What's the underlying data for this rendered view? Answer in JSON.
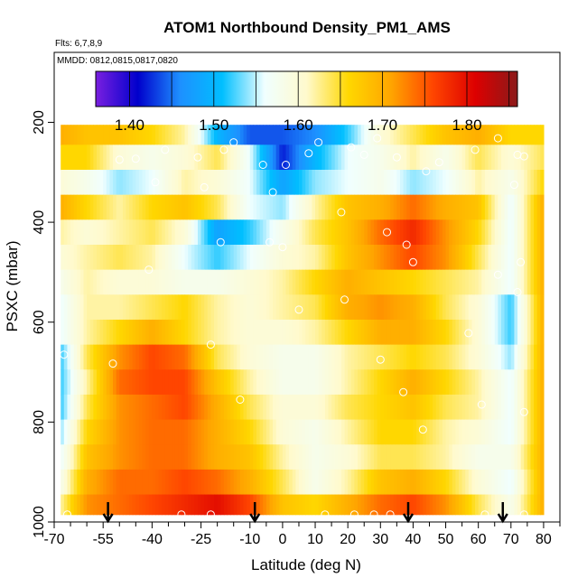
{
  "chart_data": {
    "type": "heatmap",
    "title": "ATOM1 Northbound Density_PM1_AMS",
    "flights_label": "Flts: 6,7,8,9",
    "dates_label": "MMDD: 0812,0815,0817,0820",
    "xlabel": "Latitude (deg N)",
    "ylabel": "PSXC (mbar)",
    "xlim": [
      -70,
      85
    ],
    "ylim": [
      1000,
      60
    ],
    "x_ticks": [
      -70,
      -55,
      -40,
      -25,
      -10,
      0,
      10,
      20,
      30,
      40,
      50,
      60,
      70,
      80
    ],
    "x_minor_ticks": [
      -65,
      -60,
      -50,
      -45,
      -35,
      -30,
      -20,
      -15,
      -5,
      5,
      15,
      25,
      35,
      45,
      55,
      65,
      75,
      85
    ],
    "y_ticks": [
      200,
      400,
      600,
      800,
      1000
    ],
    "colorbar": {
      "min": 1.36,
      "max": 1.86,
      "ticks": [
        1.4,
        1.5,
        1.6,
        1.7,
        1.8
      ],
      "tick_labels": [
        "1.40",
        "1.50",
        "1.60",
        "1.70",
        "1.80"
      ],
      "colors": [
        "#7a1fe0",
        "#0000cc",
        "#1e90ff",
        "#00bfff",
        "#f0ffff",
        "#fffacd",
        "#ffd700",
        "#ffa500",
        "#ff4500",
        "#dd0000",
        "#8b1a1a"
      ]
    },
    "pressure_levels": [
      220,
      270,
      320,
      370,
      420,
      470,
      520,
      570,
      620,
      670,
      720,
      770,
      820,
      870,
      920,
      970
    ],
    "lat_knots": [
      -68,
      -60,
      -50,
      -40,
      -30,
      -20,
      -10,
      0,
      10,
      20,
      30,
      40,
      50,
      60,
      70,
      80
    ],
    "density_rows": [
      [
        1.7,
        1.68,
        1.68,
        1.66,
        1.62,
        1.5,
        1.44,
        1.44,
        1.46,
        1.52,
        1.6,
        1.64,
        1.68,
        1.7,
        1.66,
        1.66
      ],
      [
        1.66,
        1.66,
        1.6,
        1.58,
        1.6,
        1.64,
        1.56,
        1.42,
        1.5,
        1.56,
        1.58,
        1.62,
        1.58,
        1.64,
        1.6,
        1.64
      ],
      [
        1.6,
        1.58,
        1.54,
        1.56,
        1.62,
        1.6,
        1.56,
        1.48,
        1.54,
        1.56,
        1.58,
        1.54,
        1.56,
        1.62,
        1.58,
        1.66
      ],
      [
        1.7,
        1.66,
        1.62,
        1.66,
        1.68,
        1.64,
        1.56,
        1.54,
        1.62,
        1.68,
        1.7,
        1.74,
        1.7,
        1.68,
        1.56,
        1.7
      ],
      [
        1.62,
        1.6,
        1.62,
        1.64,
        1.6,
        1.48,
        1.52,
        1.58,
        1.64,
        1.68,
        1.74,
        1.78,
        1.72,
        1.66,
        1.56,
        1.7
      ],
      [
        1.6,
        1.62,
        1.64,
        1.62,
        1.56,
        1.52,
        1.56,
        1.6,
        1.62,
        1.68,
        1.72,
        1.76,
        1.72,
        1.64,
        1.56,
        1.7
      ],
      [
        1.58,
        1.62,
        1.6,
        1.6,
        1.58,
        1.58,
        1.6,
        1.62,
        1.66,
        1.7,
        1.68,
        1.66,
        1.64,
        1.62,
        1.56,
        1.7
      ],
      [
        1.56,
        1.62,
        1.62,
        1.64,
        1.66,
        1.62,
        1.6,
        1.62,
        1.64,
        1.7,
        1.72,
        1.7,
        1.64,
        1.6,
        1.52,
        1.7
      ],
      [
        1.56,
        1.62,
        1.66,
        1.7,
        1.66,
        1.62,
        1.6,
        1.6,
        1.62,
        1.66,
        1.7,
        1.7,
        1.66,
        1.6,
        1.52,
        1.7
      ],
      [
        1.52,
        1.64,
        1.72,
        1.76,
        1.74,
        1.64,
        1.6,
        1.58,
        1.58,
        1.62,
        1.64,
        1.66,
        1.64,
        1.6,
        1.54,
        1.7
      ],
      [
        1.52,
        1.62,
        1.74,
        1.76,
        1.76,
        1.68,
        1.62,
        1.58,
        1.58,
        1.62,
        1.66,
        1.7,
        1.66,
        1.62,
        1.56,
        1.7
      ],
      [
        1.52,
        1.64,
        1.72,
        1.74,
        1.76,
        1.7,
        1.64,
        1.6,
        1.6,
        1.64,
        1.66,
        1.68,
        1.64,
        1.62,
        1.56,
        1.7
      ],
      [
        1.54,
        1.66,
        1.72,
        1.74,
        1.74,
        1.7,
        1.66,
        1.6,
        1.58,
        1.62,
        1.66,
        1.66,
        1.62,
        1.6,
        1.56,
        1.7
      ],
      [
        1.56,
        1.68,
        1.72,
        1.74,
        1.74,
        1.7,
        1.68,
        1.62,
        1.58,
        1.6,
        1.64,
        1.64,
        1.62,
        1.58,
        1.58,
        1.7
      ],
      [
        1.58,
        1.7,
        1.74,
        1.74,
        1.76,
        1.74,
        1.7,
        1.64,
        1.58,
        1.62,
        1.68,
        1.7,
        1.66,
        1.6,
        1.56,
        1.7
      ],
      [
        1.62,
        1.72,
        1.74,
        1.76,
        1.78,
        1.8,
        1.76,
        1.68,
        1.66,
        1.7,
        1.74,
        1.76,
        1.72,
        1.64,
        1.58,
        1.7
      ]
    ],
    "data_extent": {
      "lat_min": -68,
      "lat_max": 80,
      "p_top": 205,
      "p_bottom": 985
    },
    "samples": [
      [
        -67,
        665
      ],
      [
        -66,
        985
      ],
      [
        -52,
        683
      ],
      [
        -50,
        275
      ],
      [
        -45,
        273
      ],
      [
        -41,
        495
      ],
      [
        -39,
        320
      ],
      [
        -36,
        255
      ],
      [
        -31,
        985
      ],
      [
        -26,
        270
      ],
      [
        -24,
        330
      ],
      [
        -22,
        985
      ],
      [
        -22,
        645
      ],
      [
        -19,
        440
      ],
      [
        -18,
        255
      ],
      [
        -15,
        240
      ],
      [
        -13,
        755
      ],
      [
        -6,
        285
      ],
      [
        -4,
        440
      ],
      [
        -3,
        340
      ],
      [
        0,
        450
      ],
      [
        1,
        285
      ],
      [
        5,
        575
      ],
      [
        8,
        262
      ],
      [
        11,
        240
      ],
      [
        13,
        985
      ],
      [
        18,
        380
      ],
      [
        19,
        555
      ],
      [
        21,
        250
      ],
      [
        22,
        985
      ],
      [
        25,
        265
      ],
      [
        28,
        985
      ],
      [
        29,
        232
      ],
      [
        30,
        675
      ],
      [
        32,
        420
      ],
      [
        33,
        985
      ],
      [
        35,
        270
      ],
      [
        37,
        740
      ],
      [
        38,
        445
      ],
      [
        40,
        480
      ],
      [
        43,
        815
      ],
      [
        44,
        298
      ],
      [
        48,
        280
      ],
      [
        57,
        622
      ],
      [
        59,
        255
      ],
      [
        61,
        765
      ],
      [
        62,
        985
      ],
      [
        66,
        232
      ],
      [
        66,
        505
      ],
      [
        71,
        325
      ],
      [
        72,
        265
      ],
      [
        72,
        540
      ],
      [
        73,
        480
      ],
      [
        74,
        780
      ],
      [
        74,
        985
      ],
      [
        74,
        268
      ]
    ],
    "arrows_lat": [
      -53.5,
      -8.5,
      38.5,
      67.5
    ]
  }
}
